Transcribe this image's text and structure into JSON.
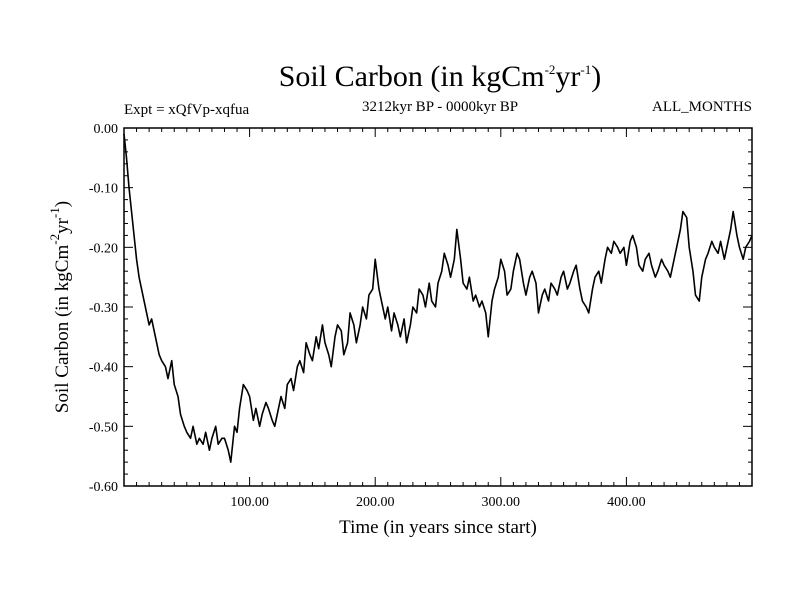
{
  "chart_data": {
    "type": "line",
    "title": {
      "base": "Soil Carbon (in kgCm",
      "sup1": "-2",
      "mid": "yr",
      "sup2": "-1",
      "end": ")"
    },
    "subtitle_left": "Expt = xQfVp-xqfua",
    "subtitle_center": "3212kyr BP - 0000kyr BP",
    "subtitle_right": "ALL_MONTHS",
    "xlabel": "Time (in years since start)",
    "ylabel": {
      "base": "Soil Carbon (in kgCm",
      "sup1": "-2",
      "mid": "yr",
      "sup2": "-1",
      "end": ")"
    },
    "xlim": [
      0,
      500
    ],
    "ylim": [
      -0.6,
      0.0
    ],
    "x_ticks": [
      100,
      200,
      300,
      400
    ],
    "x_tick_labels": [
      "100.00",
      "200.00",
      "300.00",
      "400.00"
    ],
    "y_ticks": [
      0.0,
      -0.1,
      -0.2,
      -0.3,
      -0.4,
      -0.5,
      -0.6
    ],
    "y_tick_labels": [
      "0.00",
      "-0.10",
      "-0.20",
      "-0.30",
      "-0.40",
      "-0.50",
      "-0.60"
    ],
    "series": [
      {
        "name": "Soil Carbon",
        "color": "#000000",
        "x": [
          0,
          2,
          4,
          6,
          8,
          10,
          12,
          14,
          16,
          18,
          20,
          22,
          25,
          28,
          30,
          33,
          35,
          38,
          40,
          43,
          45,
          48,
          50,
          53,
          55,
          58,
          60,
          63,
          65,
          68,
          70,
          73,
          75,
          78,
          80,
          83,
          85,
          88,
          90,
          92,
          95,
          98,
          100,
          103,
          105,
          108,
          110,
          113,
          115,
          118,
          120,
          123,
          125,
          128,
          130,
          133,
          135,
          138,
          140,
          143,
          145,
          148,
          150,
          153,
          155,
          158,
          160,
          163,
          165,
          168,
          170,
          173,
          175,
          178,
          180,
          183,
          185,
          188,
          190,
          193,
          195,
          198,
          200,
          203,
          205,
          208,
          210,
          213,
          215,
          218,
          220,
          223,
          225,
          228,
          230,
          233,
          235,
          238,
          240,
          243,
          245,
          248,
          250,
          253,
          255,
          258,
          260,
          263,
          265,
          268,
          270,
          273,
          275,
          278,
          280,
          283,
          285,
          288,
          290,
          293,
          295,
          298,
          300,
          303,
          305,
          308,
          310,
          313,
          315,
          318,
          320,
          323,
          325,
          328,
          330,
          333,
          335,
          338,
          340,
          343,
          345,
          348,
          350,
          353,
          355,
          358,
          360,
          363,
          365,
          368,
          370,
          373,
          375,
          378,
          380,
          383,
          385,
          388,
          390,
          393,
          395,
          398,
          400,
          403,
          405,
          408,
          410,
          413,
          415,
          418,
          420,
          423,
          425,
          428,
          430,
          433,
          435,
          438,
          440,
          443,
          445,
          448,
          450,
          453,
          455,
          458,
          460,
          463,
          465,
          468,
          470,
          473,
          475,
          478,
          480,
          483,
          485,
          488,
          490,
          493,
          495,
          498,
          500
        ],
        "y": [
          -0.01,
          -0.05,
          -0.1,
          -0.14,
          -0.18,
          -0.22,
          -0.25,
          -0.27,
          -0.29,
          -0.31,
          -0.33,
          -0.32,
          -0.35,
          -0.38,
          -0.39,
          -0.4,
          -0.42,
          -0.39,
          -0.43,
          -0.45,
          -0.48,
          -0.5,
          -0.51,
          -0.52,
          -0.5,
          -0.53,
          -0.52,
          -0.53,
          -0.51,
          -0.54,
          -0.52,
          -0.5,
          -0.53,
          -0.52,
          -0.52,
          -0.54,
          -0.56,
          -0.5,
          -0.51,
          -0.47,
          -0.43,
          -0.44,
          -0.45,
          -0.49,
          -0.47,
          -0.5,
          -0.48,
          -0.46,
          -0.47,
          -0.49,
          -0.5,
          -0.47,
          -0.45,
          -0.47,
          -0.43,
          -0.42,
          -0.44,
          -0.4,
          -0.39,
          -0.41,
          -0.36,
          -0.38,
          -0.39,
          -0.35,
          -0.37,
          -0.33,
          -0.36,
          -0.38,
          -0.4,
          -0.35,
          -0.33,
          -0.34,
          -0.38,
          -0.36,
          -0.31,
          -0.33,
          -0.36,
          -0.33,
          -0.3,
          -0.32,
          -0.28,
          -0.27,
          -0.22,
          -0.27,
          -0.29,
          -0.32,
          -0.3,
          -0.34,
          -0.31,
          -0.33,
          -0.35,
          -0.32,
          -0.36,
          -0.33,
          -0.3,
          -0.31,
          -0.27,
          -0.28,
          -0.3,
          -0.26,
          -0.29,
          -0.3,
          -0.26,
          -0.24,
          -0.21,
          -0.23,
          -0.25,
          -0.22,
          -0.17,
          -0.22,
          -0.26,
          -0.27,
          -0.25,
          -0.29,
          -0.28,
          -0.3,
          -0.29,
          -0.31,
          -0.35,
          -0.29,
          -0.27,
          -0.25,
          -0.22,
          -0.24,
          -0.28,
          -0.27,
          -0.24,
          -0.21,
          -0.22,
          -0.26,
          -0.28,
          -0.25,
          -0.24,
          -0.26,
          -0.31,
          -0.28,
          -0.27,
          -0.29,
          -0.26,
          -0.27,
          -0.28,
          -0.25,
          -0.24,
          -0.27,
          -0.26,
          -0.24,
          -0.23,
          -0.27,
          -0.29,
          -0.3,
          -0.31,
          -0.27,
          -0.25,
          -0.24,
          -0.26,
          -0.22,
          -0.2,
          -0.21,
          -0.19,
          -0.2,
          -0.21,
          -0.2,
          -0.23,
          -0.19,
          -0.18,
          -0.2,
          -0.23,
          -0.24,
          -0.22,
          -0.21,
          -0.23,
          -0.25,
          -0.24,
          -0.22,
          -0.23,
          -0.24,
          -0.25,
          -0.22,
          -0.2,
          -0.17,
          -0.14,
          -0.15,
          -0.2,
          -0.24,
          -0.28,
          -0.29,
          -0.25,
          -0.22,
          -0.21,
          -0.19,
          -0.2,
          -0.21,
          -0.19,
          -0.22,
          -0.2,
          -0.17,
          -0.14,
          -0.18,
          -0.2,
          -0.22,
          -0.2,
          -0.19,
          -0.18
        ]
      }
    ]
  },
  "style": {
    "line_color": "#000000",
    "background": "#ffffff"
  }
}
